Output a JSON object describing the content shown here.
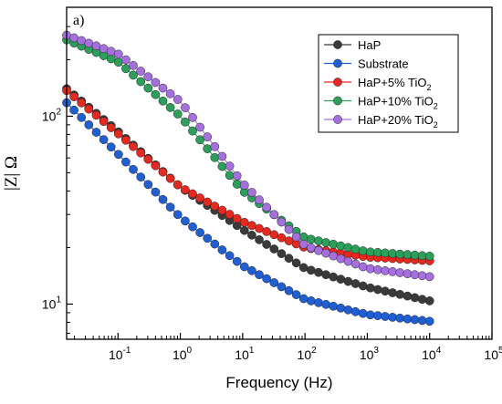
{
  "chart_data": {
    "type": "scatter",
    "panel_label": "a)",
    "title": "",
    "xlabel": "Frequency (Hz)",
    "ylabel": "|Z| Ω",
    "x_scale": "log",
    "y_scale": "log",
    "xlim": [
      0.015,
      100000
    ],
    "ylim": [
      6.5,
      380
    ],
    "x_ticks": [
      {
        "value": 0.1,
        "base": "10",
        "exp": "-1"
      },
      {
        "value": 1,
        "base": "10",
        "exp": "0"
      },
      {
        "value": 10,
        "base": "10",
        "exp": "1"
      },
      {
        "value": 100,
        "base": "10",
        "exp": "2"
      },
      {
        "value": 1000,
        "base": "10",
        "exp": "3"
      },
      {
        "value": 10000,
        "base": "10",
        "exp": "4"
      },
      {
        "value": 100000,
        "base": "10",
        "exp": "5"
      }
    ],
    "y_ticks": [
      {
        "value": 10,
        "base": "10",
        "exp": "1"
      },
      {
        "value": 100,
        "base": "10",
        "exp": "2"
      }
    ],
    "grid": false,
    "legend_position": "top-right",
    "series": [
      {
        "name": "HaP",
        "name_sub": "",
        "color": "#3a3a3a",
        "anchors": [
          [
            0.015,
            140
          ],
          [
            0.1,
            83
          ],
          [
            1,
            42
          ],
          [
            10,
            25
          ],
          [
            100,
            15.5
          ],
          [
            1000,
            12.3
          ],
          [
            10000,
            10.4
          ]
        ]
      },
      {
        "name": "Substrate",
        "name_sub": "",
        "color": "#1f5fd6",
        "anchors": [
          [
            0.015,
            118
          ],
          [
            0.1,
            63
          ],
          [
            1,
            29
          ],
          [
            10,
            16
          ],
          [
            100,
            10.6
          ],
          [
            1000,
            8.8
          ],
          [
            10000,
            8.1
          ]
        ]
      },
      {
        "name": "HaP+5% TiO",
        "name_sub": "2",
        "color": "#e8281e",
        "anchors": [
          [
            0.015,
            137
          ],
          [
            0.1,
            81
          ],
          [
            1,
            42
          ],
          [
            10,
            27.5
          ],
          [
            100,
            20
          ],
          [
            1000,
            17.8
          ],
          [
            10000,
            17
          ]
        ]
      },
      {
        "name": "HaP+10% TiO",
        "name_sub": "2",
        "color": "#2aa05a",
        "anchors": [
          [
            0.015,
            255
          ],
          [
            0.1,
            195
          ],
          [
            1,
            100
          ],
          [
            10,
            40
          ],
          [
            100,
            22.5
          ],
          [
            1000,
            19
          ],
          [
            10000,
            18
          ]
        ]
      },
      {
        "name": "HaP+20% TiO",
        "name_sub": "2",
        "color": "#a66fe0",
        "anchors": [
          [
            0.015,
            270
          ],
          [
            0.1,
            215
          ],
          [
            1,
            120
          ],
          [
            10,
            44
          ],
          [
            100,
            20.5
          ],
          [
            1000,
            15.5
          ],
          [
            10000,
            14
          ]
        ]
      }
    ]
  }
}
